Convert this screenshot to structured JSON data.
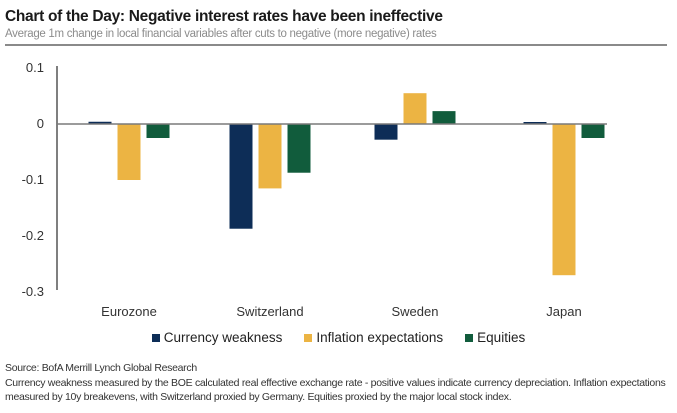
{
  "header": {
    "title": "Chart of the Day: Negative interest rates have been ineffective",
    "subtitle": "Average 1m change in local financial variables after cuts to negative (more negative) rates"
  },
  "chart_data": {
    "type": "bar",
    "title": "Chart of the Day: Negative interest rates have been ineffective",
    "subtitle": "Average 1m change in local financial variables after cuts to negative (more negative) rates",
    "xlabel": "",
    "ylabel": "",
    "ylim": [
      -0.3,
      0.1
    ],
    "yticks": [
      0.1,
      0,
      -0.1,
      -0.2,
      -0.3
    ],
    "ytick_labels": [
      "0.1",
      "0",
      "-0.1",
      "-0.2",
      "-0.3"
    ],
    "categories": [
      "Eurozone",
      "Switzerland",
      "Sweden",
      "Japan"
    ],
    "series": [
      {
        "name": "Currency weakness",
        "color": "#0d2d57",
        "values": [
          0.004,
          -0.187,
          -0.028,
          0.003
        ]
      },
      {
        "name": "Inflation expectations",
        "color": "#ecb443",
        "values": [
          -0.1,
          -0.115,
          0.055,
          -0.27
        ]
      },
      {
        "name": "Equities",
        "color": "#115c3c",
        "values": [
          -0.025,
          -0.087,
          0.023,
          -0.025
        ]
      }
    ],
    "grid": false,
    "legend": "bottom-center"
  },
  "footer": {
    "source": "Source: BofA Merrill Lynch Global Research",
    "note": "Currency weakness measured by the BOE calculated real effective exchange rate - positive values indicate currency depreciation. Inflation expectations measured by 10y breakevens, with Switzerland proxied by Germany. Equities proxied by the major local stock index."
  }
}
